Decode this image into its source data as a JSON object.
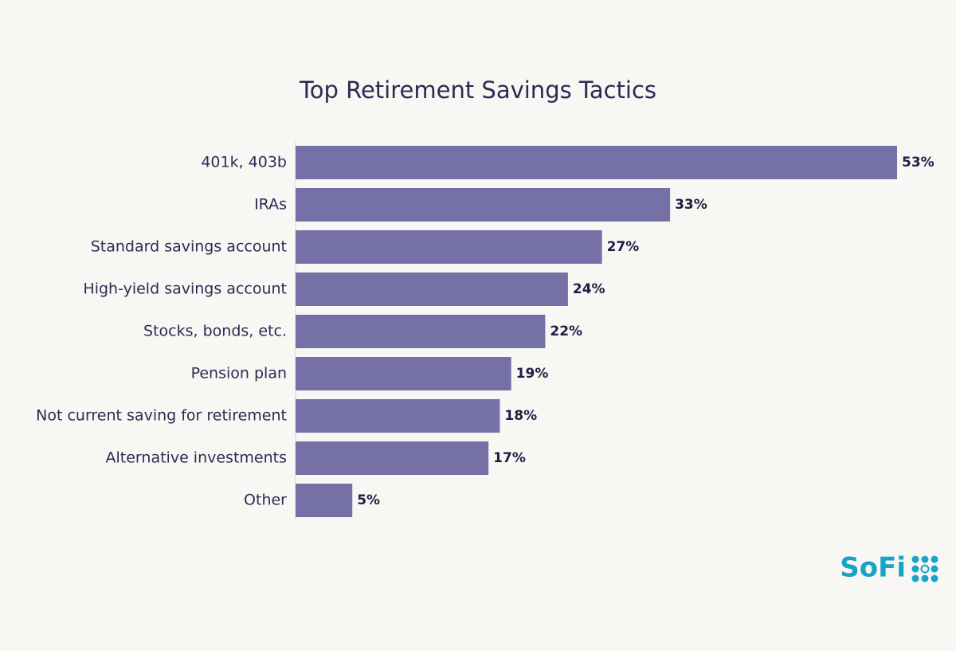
{
  "chart_data": {
    "type": "bar",
    "orientation": "horizontal",
    "title": "Top Retirement Savings Tactics",
    "categories": [
      "401k, 403b",
      "IRAs",
      "Standard savings account",
      "High-yield savings account",
      "Stocks, bonds, etc.",
      "Pension plan",
      "Not current saving for retirement",
      "Alternative investments",
      "Other"
    ],
    "values": [
      53,
      33,
      27,
      24,
      22,
      19,
      18,
      17,
      5
    ],
    "value_labels": [
      "53%",
      "33%",
      "27%",
      "24%",
      "22%",
      "19%",
      "18%",
      "17%",
      "5%"
    ],
    "color": "#7570a6"
  },
  "logo": "SoFi"
}
